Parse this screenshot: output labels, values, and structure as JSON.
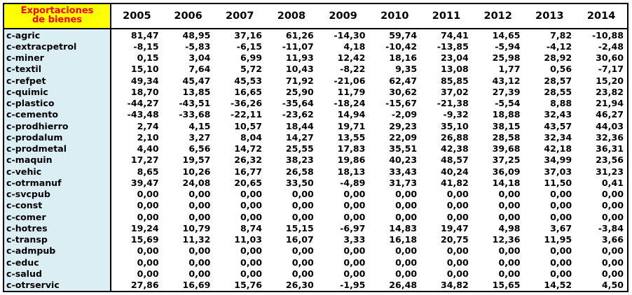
{
  "header": {
    "corner_line1": "Exportaciones",
    "corner_line2": "de bienes",
    "years": [
      "2005",
      "2006",
      "2007",
      "2008",
      "2009",
      "2010",
      "2011",
      "2012",
      "2013",
      "2014"
    ]
  },
  "rows": [
    {
      "label": "c-agric",
      "values": [
        "81,47",
        "48,95",
        "37,16",
        "61,26",
        "-14,30",
        "59,74",
        "74,41",
        "14,65",
        "7,82",
        "-10,88"
      ]
    },
    {
      "label": "c-extracpetrol",
      "values": [
        "-8,15",
        "-5,83",
        "-6,15",
        "-11,07",
        "4,18",
        "-10,42",
        "-13,85",
        "-5,94",
        "-4,12",
        "-2,48"
      ]
    },
    {
      "label": "c-miner",
      "values": [
        "0,15",
        "3,04",
        "6,99",
        "11,93",
        "12,42",
        "18,16",
        "23,04",
        "25,98",
        "28,92",
        "30,60"
      ]
    },
    {
      "label": "c-textil",
      "values": [
        "15,10",
        "7,64",
        "5,72",
        "10,43",
        "-8,22",
        "9,35",
        "13,08",
        "1,77",
        "0,56",
        "-7,17"
      ]
    },
    {
      "label": "c-refpet",
      "values": [
        "49,34",
        "45,47",
        "45,53",
        "71,92",
        "-21,06",
        "62,47",
        "85,85",
        "43,12",
        "28,57",
        "15,20"
      ]
    },
    {
      "label": "c-quimic",
      "values": [
        "18,70",
        "13,85",
        "16,65",
        "25,90",
        "11,79",
        "30,62",
        "37,02",
        "27,39",
        "28,55",
        "23,82"
      ]
    },
    {
      "label": "c-plastico",
      "values": [
        "-44,27",
        "-43,51",
        "-36,26",
        "-35,64",
        "-18,24",
        "-15,67",
        "-21,38",
        "-5,54",
        "8,88",
        "21,94"
      ]
    },
    {
      "label": "c-cemento",
      "values": [
        "-43,48",
        "-33,68",
        "-22,11",
        "-23,62",
        "14,94",
        "-2,09",
        "-9,32",
        "18,88",
        "32,43",
        "46,27"
      ]
    },
    {
      "label": "c-prodhierro",
      "values": [
        "2,74",
        "4,15",
        "10,57",
        "18,44",
        "19,71",
        "29,23",
        "35,10",
        "38,15",
        "43,57",
        "44,03"
      ]
    },
    {
      "label": "c-prodalum",
      "values": [
        "2,10",
        "3,27",
        "8,04",
        "14,27",
        "13,55",
        "22,09",
        "26,88",
        "28,58",
        "32,34",
        "32,36"
      ]
    },
    {
      "label": "c-prodmetal",
      "values": [
        "4,40",
        "6,56",
        "14,72",
        "25,55",
        "17,83",
        "35,51",
        "42,38",
        "39,68",
        "42,18",
        "36,31"
      ]
    },
    {
      "label": "c-maquin",
      "values": [
        "17,27",
        "19,57",
        "26,32",
        "38,23",
        "19,86",
        "40,23",
        "48,57",
        "37,25",
        "34,99",
        "23,56"
      ]
    },
    {
      "label": "c-vehic",
      "values": [
        "8,65",
        "10,26",
        "16,77",
        "26,58",
        "18,13",
        "33,43",
        "40,24",
        "36,09",
        "37,03",
        "31,23"
      ]
    },
    {
      "label": "c-otrmanuf",
      "values": [
        "39,47",
        "24,08",
        "20,65",
        "33,50",
        "-4,89",
        "31,73",
        "41,82",
        "14,18",
        "11,50",
        "0,41"
      ]
    },
    {
      "label": "c-svcpub",
      "values": [
        "0,00",
        "0,00",
        "0,00",
        "0,00",
        "0,00",
        "0,00",
        "0,00",
        "0,00",
        "0,00",
        "0,00"
      ]
    },
    {
      "label": "c-const",
      "values": [
        "0,00",
        "0,00",
        "0,00",
        "0,00",
        "0,00",
        "0,00",
        "0,00",
        "0,00",
        "0,00",
        "0,00"
      ]
    },
    {
      "label": "c-comer",
      "values": [
        "0,00",
        "0,00",
        "0,00",
        "0,00",
        "0,00",
        "0,00",
        "0,00",
        "0,00",
        "0,00",
        "0,00"
      ]
    },
    {
      "label": "c-hotres",
      "values": [
        "19,24",
        "10,79",
        "8,74",
        "15,15",
        "-6,97",
        "14,83",
        "19,47",
        "4,98",
        "3,67",
        "-3,84"
      ]
    },
    {
      "label": "c-transp",
      "values": [
        "15,69",
        "11,32",
        "11,03",
        "16,07",
        "3,33",
        "16,18",
        "20,75",
        "12,36",
        "11,95",
        "3,66"
      ]
    },
    {
      "label": "c-admpub",
      "values": [
        "0,00",
        "0,00",
        "0,00",
        "0,00",
        "0,00",
        "0,00",
        "0,00",
        "0,00",
        "0,00",
        "0,00"
      ]
    },
    {
      "label": "c-educ",
      "values": [
        "0,00",
        "0,00",
        "0,00",
        "0,00",
        "0,00",
        "0,00",
        "0,00",
        "0,00",
        "0,00",
        "0,00"
      ]
    },
    {
      "label": "c-salud",
      "values": [
        "0,00",
        "0,00",
        "0,00",
        "0,00",
        "0,00",
        "0,00",
        "0,00",
        "0,00",
        "0,00",
        "0,00"
      ]
    },
    {
      "label": "c-otrservic",
      "values": [
        "27,86",
        "16,69",
        "15,76",
        "26,30",
        "-1,95",
        "26,48",
        "34,82",
        "15,65",
        "14,52",
        "4,50"
      ]
    }
  ],
  "colors": {
    "corner_bg": "#ffff00",
    "corner_text": "#ff0000",
    "label_bg": "#dbeef4"
  }
}
